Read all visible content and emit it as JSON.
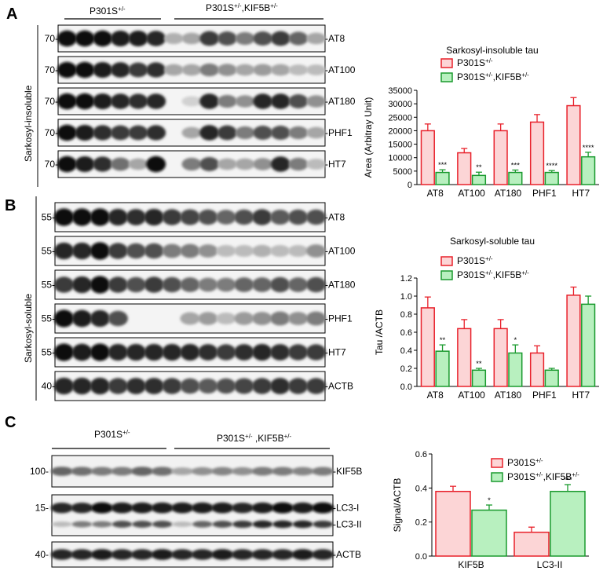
{
  "colors": {
    "ctrl_edge": "#e8202a",
    "ctrl_fill": "#fcd5d6",
    "kif_edge": "#1a9a2e",
    "kif_fill": "#b8f0bf"
  },
  "panels": {
    "A": {
      "letter": "A",
      "group1": "P301S",
      "group1_sup": "+/-",
      "group2": "P301S",
      "group2_sup": "+/-",
      "group2_mid": ",KIF5B",
      "group2_sup2": "+/-",
      "side_label": "Sarkosyl-insoluble",
      "blots": [
        {
          "mw": "70",
          "marker": "AT8"
        },
        {
          "mw": "70",
          "marker": "AT100"
        },
        {
          "mw": "70",
          "marker": "AT180"
        },
        {
          "mw": "70",
          "marker": "PHF1"
        },
        {
          "mw": "70",
          "marker": "HT7"
        }
      ]
    },
    "B": {
      "letter": "B",
      "side_label": "Sarkosyl-soluble",
      "blots": [
        {
          "mw": "55",
          "marker": "AT8"
        },
        {
          "mw": "55",
          "marker": "AT100"
        },
        {
          "mw": "55",
          "marker": "AT180"
        },
        {
          "mw": "55",
          "marker": "PHF1"
        },
        {
          "mw": "55",
          "marker": "HT7"
        },
        {
          "mw": "40",
          "marker": "ACTB"
        }
      ]
    },
    "C": {
      "letter": "C",
      "group1": "P301S",
      "group1_sup": "+/-",
      "group2": "P301S",
      "group2_sup": "+/-",
      "group2_mid": " ,KIF5B",
      "group2_sup2": "+/-",
      "blots": [
        {
          "mw": "100",
          "marker": "KIF5B"
        },
        {
          "mw": "15",
          "marker": "-LC3-I",
          "marker2": "-LC3-II"
        },
        {
          "mw": "40",
          "marker": "ACTB"
        }
      ]
    }
  },
  "chart_data": [
    {
      "type": "bar",
      "title": "Sarkosyl-insoluble tau",
      "ylabel": "Area (Arbitray Unit)",
      "ylim": [
        0,
        35000
      ],
      "yticks": [
        "0",
        "5000",
        "10000",
        "15000",
        "20000",
        "25000",
        "30000",
        "35000"
      ],
      "categories": [
        "AT8",
        "AT100",
        "AT180",
        "PHF1",
        "HT7"
      ],
      "legend": [
        {
          "name": "P301S",
          "sup": "+/-"
        },
        {
          "name": "P301S",
          "sup": "+/-",
          "mid": ",KIF5B",
          "sup2": "+/-"
        }
      ],
      "series": [
        {
          "values": [
            20000,
            11800,
            20000,
            23200,
            29300
          ],
          "errors": [
            2500,
            1600,
            2500,
            2800,
            3000
          ]
        },
        {
          "values": [
            4500,
            3400,
            4500,
            4500,
            10300
          ],
          "errors": [
            1000,
            1200,
            900,
            700,
            1700
          ]
        }
      ],
      "significance": [
        "***",
        "**",
        "***",
        "****",
        "****"
      ]
    },
    {
      "type": "bar",
      "title": "Sarkosyl-soluble tau",
      "ylabel": "Tau /ACTB",
      "ylim": [
        0,
        1.2
      ],
      "yticks": [
        "0.0",
        "0.2",
        "0.4",
        "0.6",
        "0.8",
        "1.0",
        "1.2"
      ],
      "categories": [
        "AT8",
        "AT100",
        "AT180",
        "PHF1",
        "HT7"
      ],
      "legend": [
        {
          "name": "P301S",
          "sup": "+/-"
        },
        {
          "name": "P301S",
          "sup": "+/-",
          "mid": ",KIF5B",
          "sup2": "+/-"
        }
      ],
      "series": [
        {
          "values": [
            0.87,
            0.64,
            0.64,
            0.37,
            1.01
          ],
          "errors": [
            0.12,
            0.1,
            0.1,
            0.08,
            0.09
          ]
        },
        {
          "values": [
            0.39,
            0.18,
            0.37,
            0.18,
            0.91
          ],
          "errors": [
            0.07,
            0.02,
            0.09,
            0.02,
            0.09
          ]
        }
      ],
      "significance": [
        "**",
        "**",
        "*",
        "",
        ""
      ]
    },
    {
      "type": "bar",
      "title": "",
      "ylabel": "Signal/ACTB",
      "ylim": [
        0,
        0.6
      ],
      "yticks": [
        "0.0",
        "0.2",
        "0.4",
        "0.6"
      ],
      "categories": [
        "KIF5B",
        "LC3-II"
      ],
      "legend": [
        {
          "name": "P301S",
          "sup": "+/-"
        },
        {
          "name": "P301S",
          "sup": "+/-",
          "mid": ",KIF5B",
          "sup2": "+/-"
        }
      ],
      "series": [
        {
          "values": [
            0.38,
            0.14
          ],
          "errors": [
            0.03,
            0.03
          ]
        },
        {
          "values": [
            0.27,
            0.38
          ],
          "errors": [
            0.03,
            0.04
          ]
        }
      ],
      "significance": [
        "*",
        "***"
      ]
    }
  ]
}
